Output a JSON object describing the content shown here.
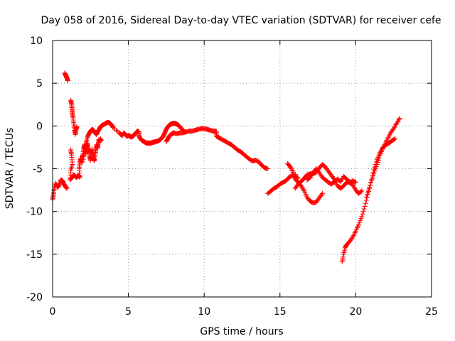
{
  "chart_data": {
    "type": "scatter",
    "title": "Day 058 of 2016, Sidereal Day-to-day VTEC variation (SDTVAR) for receiver cefe",
    "xlabel": "GPS time / hours",
    "ylabel": "SDTVAR / TECUs",
    "xlim": [
      0,
      25
    ],
    "ylim": [
      -20,
      10
    ],
    "xticks": [
      0,
      5,
      10,
      15,
      20,
      25
    ],
    "yticks": [
      -20,
      -15,
      -10,
      -5,
      0,
      5,
      10
    ],
    "grid": true,
    "marker": "+",
    "color": "#ff0000",
    "series": [
      {
        "name": "SDTVAR",
        "points": [
          [
            0.0,
            -8.6
          ],
          [
            0.05,
            -8.1
          ],
          [
            0.1,
            -7.4
          ],
          [
            0.2,
            -6.7
          ],
          [
            0.35,
            -7.2
          ],
          [
            0.45,
            -6.8
          ],
          [
            0.55,
            -6.3
          ],
          [
            0.65,
            -6.4
          ],
          [
            0.75,
            -6.8
          ],
          [
            0.85,
            -7.1
          ],
          [
            0.95,
            -7.3
          ],
          [
            0.8,
            6.2
          ],
          [
            0.85,
            6.0
          ],
          [
            0.9,
            5.8
          ],
          [
            0.95,
            5.6
          ],
          [
            1.0,
            5.3
          ],
          [
            1.2,
            3.0
          ],
          [
            1.25,
            2.6
          ],
          [
            1.28,
            2.0
          ],
          [
            1.3,
            1.5
          ],
          [
            1.35,
            1.0
          ],
          [
            1.4,
            0.2
          ],
          [
            1.45,
            -0.5
          ],
          [
            1.5,
            -1.0
          ],
          [
            1.55,
            -0.4
          ],
          [
            1.6,
            -0.1
          ],
          [
            1.2,
            -2.8
          ],
          [
            1.25,
            -3.4
          ],
          [
            1.3,
            -4.5
          ],
          [
            1.2,
            -5.2
          ],
          [
            1.15,
            -6.3
          ],
          [
            1.3,
            -6.0
          ],
          [
            1.4,
            -5.7
          ],
          [
            1.5,
            -5.9
          ],
          [
            1.6,
            -6.0
          ],
          [
            1.7,
            -5.8
          ],
          [
            1.8,
            -6.0
          ],
          [
            1.75,
            -5.0
          ],
          [
            1.8,
            -4.3
          ],
          [
            1.85,
            -3.8
          ],
          [
            1.9,
            -4.2
          ],
          [
            1.95,
            -3.6
          ],
          [
            2.0,
            -3.4
          ],
          [
            2.05,
            -2.6
          ],
          [
            2.1,
            -2.2
          ],
          [
            2.15,
            -2.8
          ],
          [
            2.2,
            -3.2
          ],
          [
            2.25,
            -2.5
          ],
          [
            2.3,
            -2.0
          ],
          [
            2.35,
            -2.6
          ],
          [
            2.4,
            -3.0
          ],
          [
            2.45,
            -3.6
          ],
          [
            2.5,
            -4.0
          ],
          [
            2.55,
            -3.5
          ],
          [
            2.6,
            -2.7
          ],
          [
            2.65,
            -3.2
          ],
          [
            2.7,
            -3.8
          ],
          [
            2.75,
            -4.1
          ],
          [
            2.8,
            -3.4
          ],
          [
            2.85,
            -2.8
          ],
          [
            2.9,
            -2.2
          ],
          [
            2.95,
            -2.6
          ],
          [
            3.0,
            -2.2
          ],
          [
            3.05,
            -1.6
          ],
          [
            3.1,
            -1.8
          ],
          [
            3.15,
            -1.5
          ],
          [
            3.2,
            -1.7
          ],
          [
            2.0,
            -4.2
          ],
          [
            2.1,
            -3.0
          ],
          [
            2.2,
            -2.0
          ],
          [
            2.3,
            -1.3
          ],
          [
            2.4,
            -0.9
          ],
          [
            2.5,
            -0.6
          ],
          [
            2.6,
            -0.4
          ],
          [
            2.7,
            -0.5
          ],
          [
            2.8,
            -0.8
          ],
          [
            2.9,
            -1.0
          ],
          [
            3.0,
            -0.6
          ],
          [
            3.1,
            -0.3
          ],
          [
            3.2,
            0.0
          ],
          [
            3.3,
            0.1
          ],
          [
            3.4,
            0.2
          ],
          [
            3.5,
            0.3
          ],
          [
            3.6,
            0.4
          ],
          [
            3.7,
            0.4
          ],
          [
            3.8,
            0.3
          ],
          [
            3.9,
            0.1
          ],
          [
            4.0,
            -0.2
          ],
          [
            4.4,
            -0.8
          ],
          [
            4.5,
            -1.0
          ],
          [
            4.6,
            -1.1
          ],
          [
            4.7,
            -0.8
          ],
          [
            4.8,
            -1.0
          ],
          [
            4.9,
            -1.2
          ],
          [
            5.0,
            -1.1
          ],
          [
            5.1,
            -1.2
          ],
          [
            5.2,
            -1.3
          ],
          [
            5.3,
            -1.2
          ],
          [
            5.4,
            -1.0
          ],
          [
            5.5,
            -0.8
          ],
          [
            5.6,
            -0.6
          ],
          [
            5.7,
            -0.7
          ],
          [
            5.7,
            -1.2
          ],
          [
            5.8,
            -1.5
          ],
          [
            5.9,
            -1.7
          ],
          [
            6.0,
            -1.8
          ],
          [
            6.1,
            -1.9
          ],
          [
            6.2,
            -2.0
          ],
          [
            6.3,
            -2.0
          ],
          [
            6.4,
            -2.0
          ],
          [
            6.5,
            -2.0
          ],
          [
            6.6,
            -1.9
          ],
          [
            6.7,
            -1.9
          ],
          [
            6.8,
            -1.8
          ],
          [
            6.9,
            -1.8
          ],
          [
            7.0,
            -1.7
          ],
          [
            7.1,
            -1.6
          ],
          [
            7.2,
            -1.4
          ],
          [
            7.3,
            -1.2
          ],
          [
            7.4,
            -0.8
          ],
          [
            7.5,
            -0.4
          ],
          [
            7.6,
            -0.1
          ],
          [
            7.7,
            0.1
          ],
          [
            7.8,
            0.2
          ],
          [
            7.9,
            0.3
          ],
          [
            8.0,
            0.3
          ],
          [
            8.1,
            0.3
          ],
          [
            8.2,
            0.2
          ],
          [
            8.3,
            0.1
          ],
          [
            8.4,
            -0.1
          ],
          [
            8.5,
            -0.3
          ],
          [
            8.6,
            -0.5
          ],
          [
            7.5,
            -1.8
          ],
          [
            7.6,
            -1.5
          ],
          [
            7.7,
            -1.2
          ],
          [
            7.8,
            -1.0
          ],
          [
            7.9,
            -0.9
          ],
          [
            8.0,
            -0.8
          ],
          [
            8.2,
            -0.9
          ],
          [
            8.4,
            -0.8
          ],
          [
            8.6,
            -0.8
          ],
          [
            8.8,
            -0.7
          ],
          [
            9.0,
            -0.6
          ],
          [
            9.2,
            -0.6
          ],
          [
            9.4,
            -0.5
          ],
          [
            9.6,
            -0.4
          ],
          [
            9.8,
            -0.3
          ],
          [
            10.0,
            -0.3
          ],
          [
            10.2,
            -0.4
          ],
          [
            10.4,
            -0.5
          ],
          [
            10.6,
            -0.6
          ],
          [
            10.8,
            -0.6
          ],
          [
            10.8,
            -1.2
          ],
          [
            11.0,
            -1.4
          ],
          [
            11.2,
            -1.6
          ],
          [
            11.4,
            -1.8
          ],
          [
            11.6,
            -2.0
          ],
          [
            11.8,
            -2.2
          ],
          [
            12.0,
            -2.5
          ],
          [
            12.2,
            -2.8
          ],
          [
            12.4,
            -3.0
          ],
          [
            12.6,
            -3.3
          ],
          [
            12.8,
            -3.6
          ],
          [
            13.0,
            -3.9
          ],
          [
            13.2,
            -4.1
          ],
          [
            13.4,
            -4.0
          ],
          [
            13.6,
            -4.2
          ],
          [
            13.8,
            -4.6
          ],
          [
            14.0,
            -4.9
          ],
          [
            14.2,
            -5.0
          ],
          [
            14.2,
            -7.9
          ],
          [
            14.4,
            -7.6
          ],
          [
            14.6,
            -7.3
          ],
          [
            14.8,
            -7.1
          ],
          [
            15.0,
            -6.8
          ],
          [
            15.2,
            -6.6
          ],
          [
            15.4,
            -6.4
          ],
          [
            15.6,
            -6.0
          ],
          [
            15.8,
            -5.8
          ],
          [
            16.0,
            -5.9
          ],
          [
            16.2,
            -6.1
          ],
          [
            15.5,
            -4.4
          ],
          [
            15.7,
            -4.8
          ],
          [
            15.9,
            -5.6
          ],
          [
            16.0,
            -6.2
          ],
          [
            16.2,
            -6.6
          ],
          [
            16.4,
            -7.0
          ],
          [
            16.6,
            -7.6
          ],
          [
            16.8,
            -8.4
          ],
          [
            17.0,
            -8.8
          ],
          [
            17.2,
            -9.0
          ],
          [
            17.4,
            -8.9
          ],
          [
            17.6,
            -8.4
          ],
          [
            17.8,
            -7.9
          ],
          [
            16.0,
            -7.3
          ],
          [
            16.2,
            -6.8
          ],
          [
            16.4,
            -6.5
          ],
          [
            16.6,
            -6.1
          ],
          [
            16.8,
            -5.7
          ],
          [
            17.0,
            -5.6
          ],
          [
            17.2,
            -5.6
          ],
          [
            17.4,
            -5.4
          ],
          [
            17.6,
            -4.9
          ],
          [
            17.8,
            -4.5
          ],
          [
            18.0,
            -4.8
          ],
          [
            18.2,
            -5.3
          ],
          [
            18.4,
            -5.8
          ],
          [
            18.6,
            -6.3
          ],
          [
            18.8,
            -7.0
          ],
          [
            19.0,
            -7.3
          ],
          [
            19.2,
            -7.0
          ],
          [
            19.4,
            -6.6
          ],
          [
            19.6,
            -6.5
          ],
          [
            19.8,
            -6.9
          ],
          [
            20.0,
            -7.5
          ],
          [
            20.2,
            -7.9
          ],
          [
            20.4,
            -7.6
          ],
          [
            16.8,
            -6.3
          ],
          [
            17.0,
            -6.0
          ],
          [
            17.2,
            -5.4
          ],
          [
            17.4,
            -5.0
          ],
          [
            17.6,
            -5.5
          ],
          [
            17.8,
            -6.0
          ],
          [
            18.0,
            -6.3
          ],
          [
            18.2,
            -6.6
          ],
          [
            18.4,
            -6.8
          ],
          [
            18.6,
            -6.5
          ],
          [
            18.8,
            -6.2
          ],
          [
            19.0,
            -6.5
          ],
          [
            19.2,
            -5.9
          ],
          [
            19.4,
            -6.2
          ],
          [
            19.6,
            -6.7
          ],
          [
            19.8,
            -6.4
          ],
          [
            20.0,
            -6.6
          ],
          [
            19.1,
            -15.9
          ],
          [
            19.2,
            -15.0
          ],
          [
            19.3,
            -14.2
          ],
          [
            19.4,
            -13.9
          ],
          [
            19.6,
            -13.5
          ],
          [
            19.8,
            -13.0
          ],
          [
            20.0,
            -12.3
          ],
          [
            20.2,
            -11.5
          ],
          [
            20.4,
            -10.6
          ],
          [
            20.6,
            -9.4
          ],
          [
            20.8,
            -8.0
          ],
          [
            21.0,
            -6.6
          ],
          [
            21.2,
            -5.1
          ],
          [
            21.4,
            -3.9
          ],
          [
            21.6,
            -3.1
          ],
          [
            21.8,
            -2.5
          ],
          [
            22.0,
            -2.2
          ],
          [
            22.2,
            -2.0
          ],
          [
            22.4,
            -1.7
          ],
          [
            22.6,
            -1.5
          ],
          [
            20.7,
            -8.3
          ],
          [
            20.9,
            -7.2
          ],
          [
            21.1,
            -6.1
          ],
          [
            21.3,
            -5.0
          ],
          [
            21.5,
            -4.0
          ],
          [
            21.7,
            -3.0
          ],
          [
            21.9,
            -2.2
          ],
          [
            22.1,
            -1.5
          ],
          [
            22.3,
            -0.8
          ],
          [
            22.5,
            -0.3
          ],
          [
            22.7,
            0.3
          ],
          [
            22.9,
            0.9
          ]
        ]
      }
    ]
  }
}
